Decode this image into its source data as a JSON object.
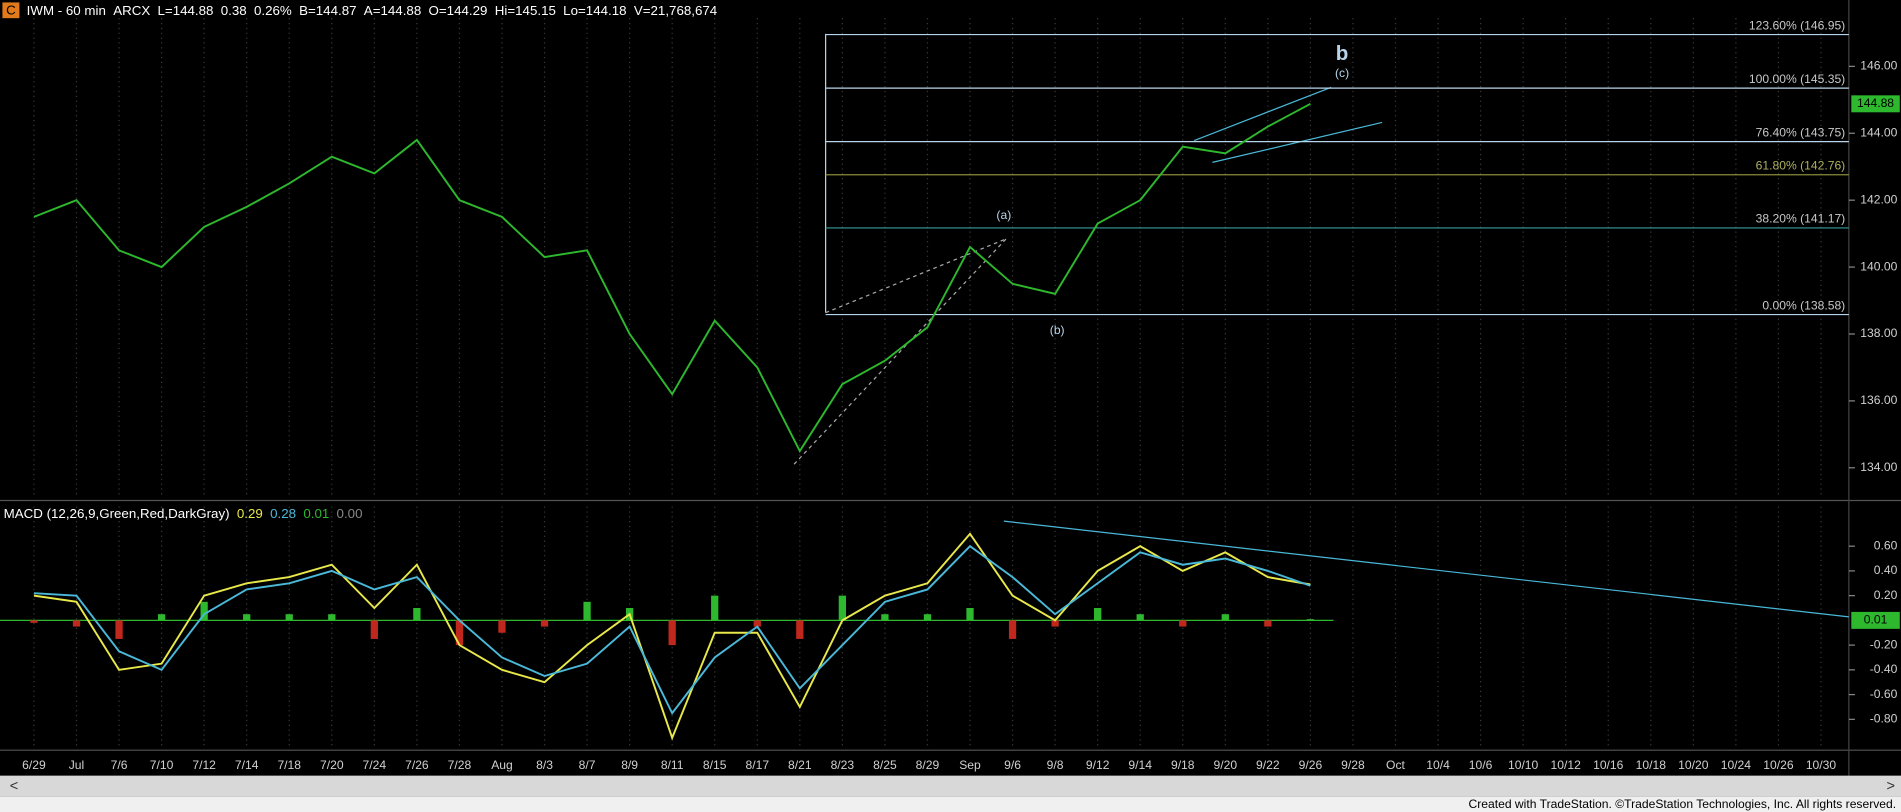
{
  "chart_data": [
    {
      "type": "line",
      "title": "IWM - 60 min",
      "exchange": "ARCX",
      "quote_fields": [
        "L=144.88",
        "0.38",
        "0.26%",
        "B=144.87",
        "A=144.88",
        "O=144.29",
        "Hi=145.15",
        "Lo=144.18",
        "V=21,768,674"
      ],
      "categories": [
        "6/29",
        "Jul",
        "7/6",
        "7/10",
        "7/12",
        "7/14",
        "7/18",
        "7/20",
        "7/24",
        "7/26",
        "7/28",
        "Aug",
        "8/3",
        "8/7",
        "8/9",
        "8/11",
        "8/15",
        "8/17",
        "8/21",
        "8/23",
        "8/25",
        "8/29",
        "Sep",
        "9/6",
        "9/8",
        "9/12",
        "9/14",
        "9/18",
        "9/20",
        "9/22",
        "9/26",
        "9/28",
        "Oct",
        "10/4",
        "10/6",
        "10/10",
        "10/12",
        "10/16",
        "10/18",
        "10/20",
        "10/24",
        "10/26",
        "10/30"
      ],
      "series": [
        {
          "name": "IWM",
          "color": "#2db82d",
          "values": [
            141.5,
            142.0,
            140.5,
            140.0,
            141.2,
            141.8,
            142.5,
            143.3,
            142.8,
            143.8,
            142.0,
            141.5,
            140.3,
            140.5,
            138.0,
            136.2,
            138.4,
            137.0,
            134.5,
            136.5,
            137.2,
            138.2,
            140.6,
            139.5,
            139.2,
            141.3,
            142.0,
            143.6,
            143.4,
            144.2,
            144.88,
            null,
            null,
            null,
            null,
            null,
            null,
            null,
            null,
            null,
            null,
            null,
            null
          ]
        }
      ],
      "ylim": [
        133.13,
        147.44
      ],
      "yticks": [
        {
          "value": 134,
          "label": "134.00"
        },
        {
          "value": 136,
          "label": "136.00"
        },
        {
          "value": 138,
          "label": "138.00"
        },
        {
          "value": 140,
          "label": "140.00"
        },
        {
          "value": 142,
          "label": "142.00"
        },
        {
          "value": 144,
          "label": "144.00"
        },
        {
          "value": 146,
          "label": "146.00"
        }
      ],
      "fib_levels": [
        {
          "value": 146.95,
          "label": "123.60% (146.95)",
          "color": "#b8d4ea"
        },
        {
          "value": 145.35,
          "label": "100.00% (145.35)",
          "color": "#b8d4ea"
        },
        {
          "value": 143.75,
          "label": "76.40% (143.75)",
          "color": "#b8d4ea"
        },
        {
          "value": 142.76,
          "label": "61.80% (142.76)",
          "color": "#8a8a3a"
        },
        {
          "value": 141.17,
          "label": "38.20% (141.17)",
          "color": "#3a9a9a"
        },
        {
          "value": 138.58,
          "label": "0.00% (138.58)",
          "color": "#b8d4ea"
        }
      ],
      "wave_labels": [
        "b",
        "(c)",
        "(a)",
        "(b)"
      ],
      "grid": true
    },
    {
      "type": "macd",
      "title": "MACD (12,26,9,Green,Red,DarkGray)",
      "zero_value_label": "0.00",
      "series": [
        {
          "name": "MACD",
          "color": "#e8e84a",
          "values": [
            0.2,
            0.15,
            -0.4,
            -0.35,
            0.2,
            0.3,
            0.35,
            0.45,
            0.1,
            0.45,
            -0.2,
            -0.4,
            -0.5,
            -0.2,
            0.05,
            -0.95,
            -0.1,
            -0.1,
            -0.7,
            0.0,
            0.2,
            0.3,
            0.7,
            0.2,
            0.0,
            0.4,
            0.6,
            0.4,
            0.55,
            0.35,
            0.29,
            null,
            null,
            null,
            null,
            null,
            null,
            null,
            null,
            null,
            null,
            null,
            null
          ]
        },
        {
          "name": "Signal",
          "color": "#4ab8d8",
          "values": [
            0.22,
            0.2,
            -0.25,
            -0.4,
            0.05,
            0.25,
            0.3,
            0.4,
            0.25,
            0.35,
            0.0,
            -0.3,
            -0.45,
            -0.35,
            -0.05,
            -0.75,
            -0.3,
            -0.05,
            -0.55,
            -0.2,
            0.15,
            0.25,
            0.6,
            0.35,
            0.05,
            0.3,
            0.55,
            0.45,
            0.5,
            0.4,
            0.28,
            null,
            null,
            null,
            null,
            null,
            null,
            null,
            null,
            null,
            null,
            null,
            null
          ]
        }
      ],
      "histogram": {
        "name": "Histogram",
        "up_color": "#2db82d",
        "down_color": "#c0281e",
        "values": [
          -0.02,
          -0.05,
          -0.15,
          0.05,
          0.15,
          0.05,
          0.05,
          0.05,
          -0.15,
          0.1,
          -0.2,
          -0.1,
          -0.05,
          0.15,
          0.1,
          -0.2,
          0.2,
          -0.05,
          -0.15,
          0.2,
          0.05,
          0.05,
          0.1,
          -0.15,
          -0.05,
          0.1,
          0.05,
          -0.05,
          0.05,
          -0.05,
          0.01,
          null,
          null,
          null,
          null,
          null,
          null,
          null,
          null,
          null,
          null,
          null,
          null
        ]
      },
      "ylim": [
        -1.03,
        0.92
      ],
      "yticks": [
        {
          "value": -0.8,
          "label": "-0.80"
        },
        {
          "value": -0.6,
          "label": "-0.60"
        },
        {
          "value": -0.4,
          "label": "-0.40"
        },
        {
          "value": -0.2,
          "label": "-0.20"
        },
        {
          "value": 0.2,
          "label": "0.20"
        },
        {
          "value": 0.4,
          "label": "0.40"
        },
        {
          "value": 0.6,
          "label": "0.60"
        }
      ]
    }
  ],
  "footer": "Created with TradeStation. ©TradeStation Technologies, Inc. All rights reserved.",
  "icon": "C"
}
